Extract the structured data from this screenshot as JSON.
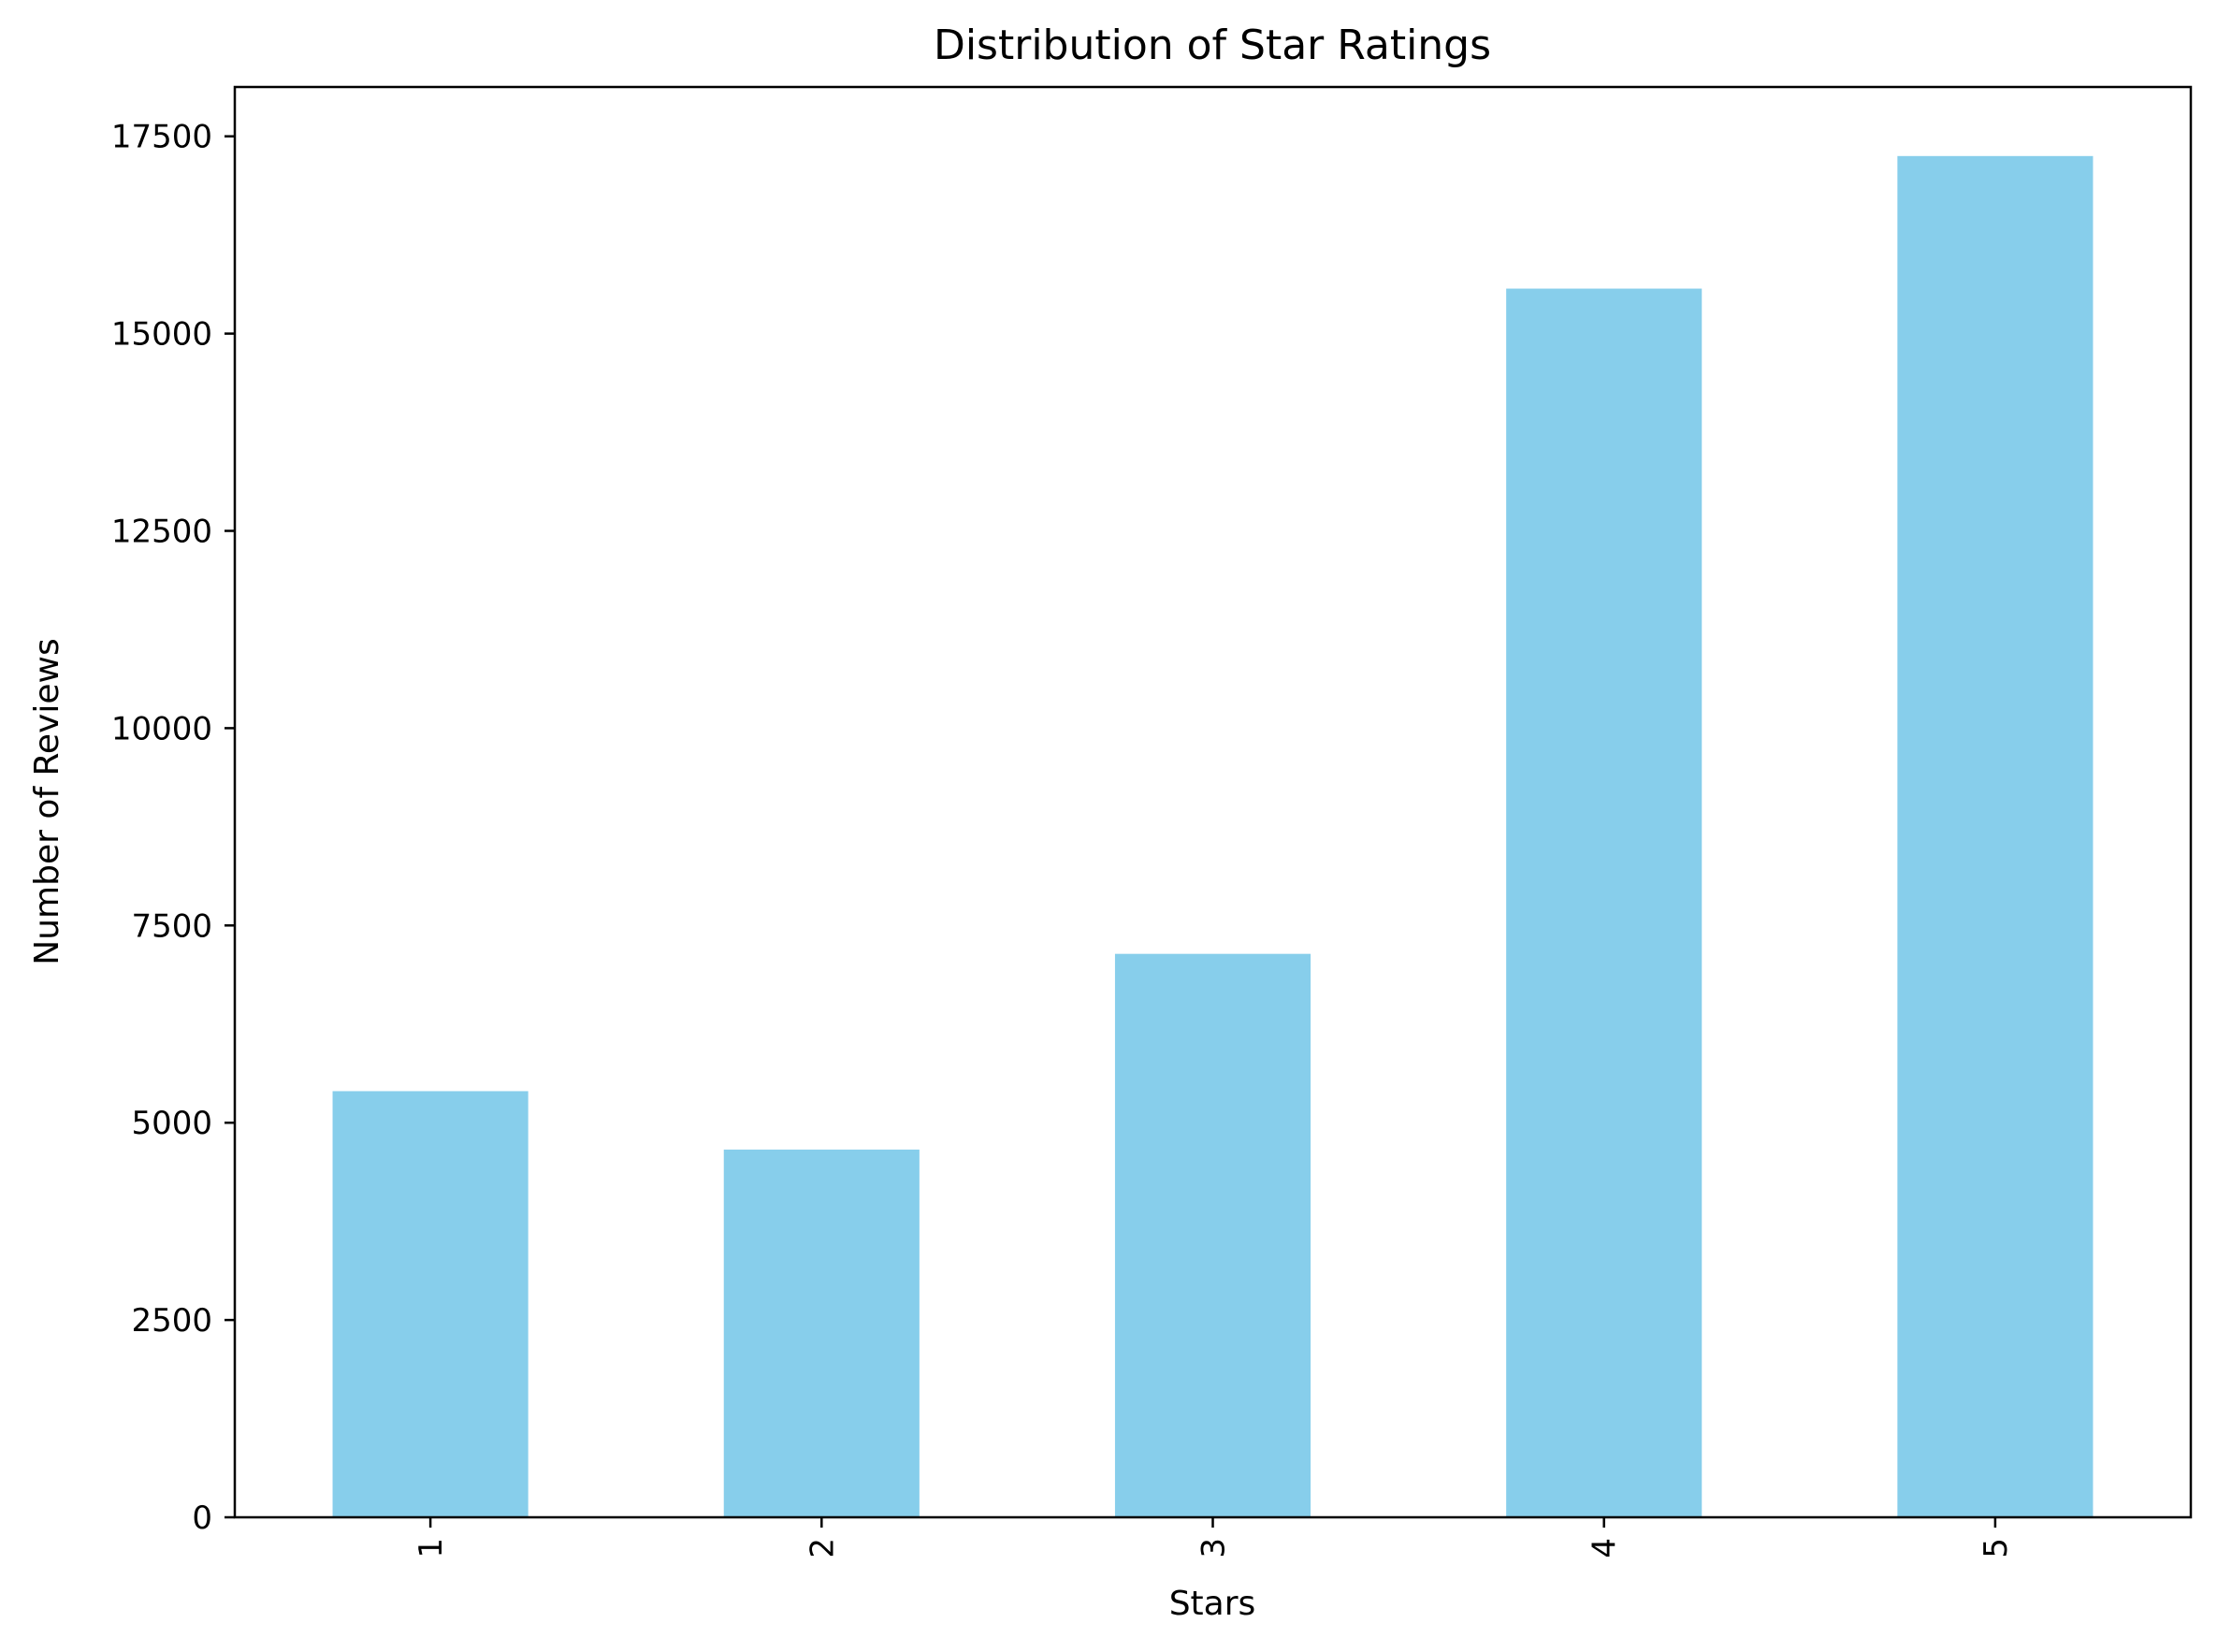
{
  "chart_data": {
    "type": "bar",
    "title": "Distribution of Star Ratings",
    "xlabel": "Stars",
    "ylabel": "Number of Reviews",
    "categories": [
      "1",
      "2",
      "3",
      "4",
      "5"
    ],
    "values": [
      5400,
      4660,
      7140,
      15570,
      17250
    ],
    "ylim": [
      0,
      18125
    ],
    "yticks": [
      0,
      2500,
      5000,
      7500,
      10000,
      12500,
      15000,
      17500
    ],
    "ytick_labels": [
      "0",
      "2500",
      "5000",
      "7500",
      "10000",
      "12500",
      "15000",
      "17500"
    ],
    "bar_color": "#87ceeb",
    "x_tick_rotation": "vertical",
    "grid": false,
    "legend": "none"
  }
}
